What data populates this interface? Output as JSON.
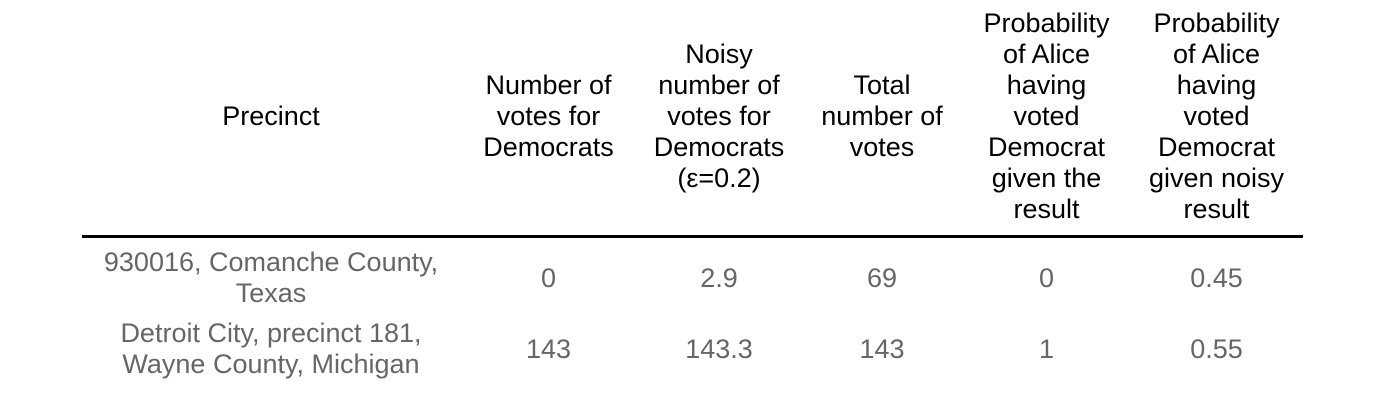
{
  "colors": {
    "header_text": "#000000",
    "body_text": "#666666",
    "rule": "#000000",
    "background": "#ffffff"
  },
  "table": {
    "headers": {
      "precinct": "Precinct",
      "votes_dem": "Number of\nvotes for\nDemocrats",
      "noisy_votes_dem": "Noisy\nnumber of\nvotes for\nDemocrats\n(ε=0.2)",
      "total_votes": "Total\nnumber of\nvotes",
      "prob_given_result": "Probability\nof Alice\nhaving\nvoted\nDemocrat\ngiven the\nresult",
      "prob_given_noisy": "Probability\nof Alice\nhaving\nvoted\nDemocrat\ngiven noisy\nresult"
    },
    "rows": [
      {
        "precinct": "930016, Comanche County,\nTexas",
        "votes_dem": "0",
        "noisy_votes_dem": "2.9",
        "total_votes": "69",
        "prob_given_result": "0",
        "prob_given_noisy": "0.45"
      },
      {
        "precinct": "Detroit City, precinct 181,\nWayne County, Michigan",
        "votes_dem": "143",
        "noisy_votes_dem": "143.3",
        "total_votes": "143",
        "prob_given_result": "1",
        "prob_given_noisy": "0.55"
      }
    ]
  },
  "chart_data": {
    "type": "table",
    "title": "",
    "columns": [
      "Precinct",
      "Number of votes for Democrats",
      "Noisy number of votes for Democrats (ε=0.2)",
      "Total number of votes",
      "Probability of Alice having voted Democrat given the result",
      "Probability of Alice having voted Democrat given noisy result"
    ],
    "rows": [
      [
        "930016, Comanche County, Texas",
        0,
        2.9,
        69,
        0,
        0.45
      ],
      [
        "Detroit City, precinct 181, Wayne County, Michigan",
        143,
        143.3,
        143,
        1,
        0.55
      ]
    ],
    "epsilon": 0.2
  }
}
